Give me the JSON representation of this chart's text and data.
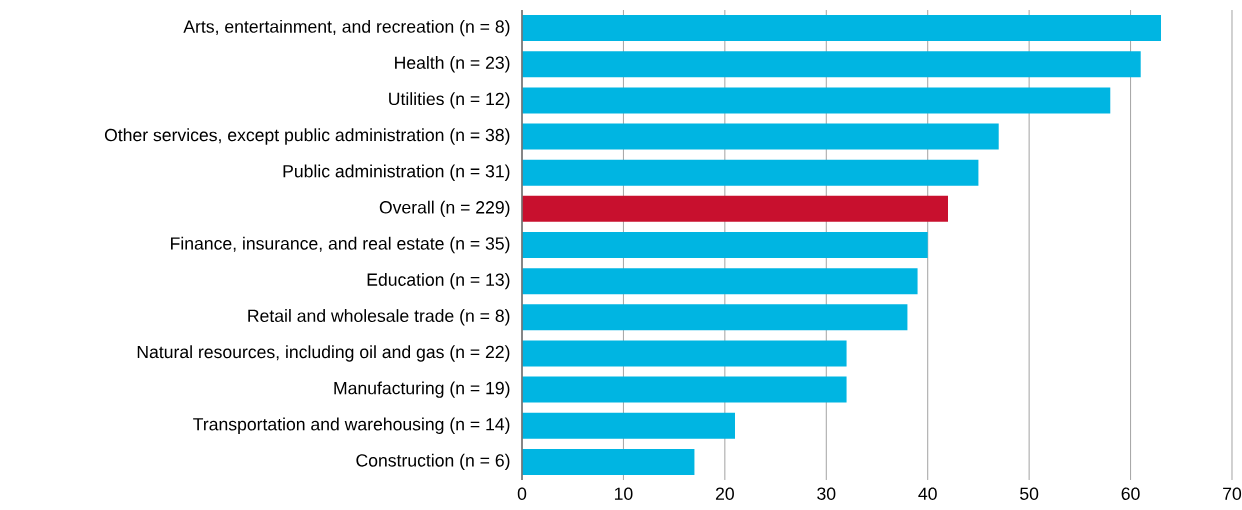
{
  "chart_data": {
    "type": "bar",
    "orientation": "horizontal",
    "categories": [
      "Arts, entertainment, and recreation (n = 8)",
      "Health (n = 23)",
      "Utilities (n = 12)",
      "Other services, except public administration (n = 38)",
      "Public administration (n = 31)",
      "Overall (n = 229)",
      "Finance, insurance, and real estate (n = 35)",
      "Education (n = 13)",
      "Retail and wholesale trade (n = 8)",
      "Natural resources, including oil and gas (n = 22)",
      "Manufacturing (n = 19)",
      "Transportation and warehousing (n = 14)",
      "Construction (n = 6)"
    ],
    "values": [
      63,
      61,
      58,
      47,
      45,
      42,
      40,
      39,
      38,
      32,
      32,
      21,
      17
    ],
    "colors": [
      "#00b5e2",
      "#00b5e2",
      "#00b5e2",
      "#00b5e2",
      "#00b5e2",
      "#c8102e",
      "#00b5e2",
      "#00b5e2",
      "#00b5e2",
      "#00b5e2",
      "#00b5e2",
      "#00b5e2",
      "#00b5e2"
    ],
    "xlim": [
      0,
      70
    ],
    "xticks": [
      0,
      10,
      20,
      30,
      40,
      50,
      60,
      70
    ],
    "grid": "x"
  }
}
